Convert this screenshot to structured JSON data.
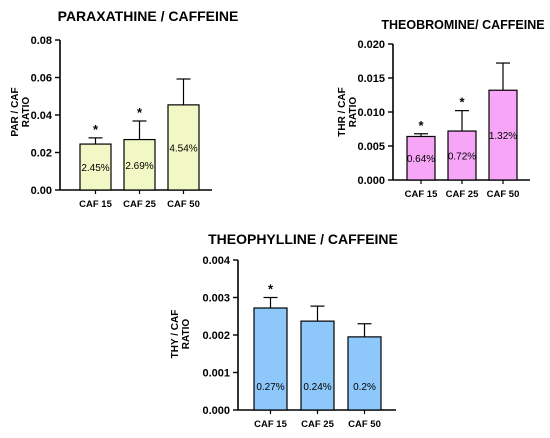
{
  "chart_data": [
    {
      "type": "bar",
      "title": "PARAXATHINE /  CAFFEINE",
      "ylabel": [
        "PAR / CAF",
        "RATIO"
      ],
      "categories": [
        "CAF 15",
        "CAF 25",
        "CAF 50"
      ],
      "values": [
        0.0245,
        0.0269,
        0.0454
      ],
      "error": [
        0.0033,
        0.0099,
        0.0138
      ],
      "bar_labels": [
        "2.45%",
        "2.69%",
        "4.54%"
      ],
      "significance": [
        "*",
        "*",
        ""
      ],
      "ylim": [
        0,
        0.08
      ],
      "yticks": [
        "0.00",
        "0.02",
        "0.04",
        "0.06",
        "0.08"
      ],
      "color": "#f2f7c6"
    },
    {
      "type": "bar",
      "title": "THEOBROMINE/ CAFFEINE",
      "ylabel": [
        "THR / CAF",
        "RATIO"
      ],
      "categories": [
        "CAF 15",
        "CAF 25",
        "CAF 50"
      ],
      "values": [
        0.0064,
        0.0072,
        0.0132
      ],
      "error": [
        0.0004,
        0.003,
        0.004
      ],
      "bar_labels": [
        "0.64%",
        "0.72%",
        "1.32%"
      ],
      "significance": [
        "*",
        "*",
        ""
      ],
      "ylim": [
        0,
        0.02
      ],
      "yticks": [
        "0.000",
        "0.005",
        "0.010",
        "0.015",
        "0.020"
      ],
      "color": "#f7a6f7"
    },
    {
      "type": "bar",
      "title": "THEOPHYLLINE / CAFFEINE",
      "ylabel": [
        "THY / CAF",
        "RATIO"
      ],
      "categories": [
        "CAF 15",
        "CAF 25",
        "CAF 50"
      ],
      "values": [
        0.00272,
        0.00237,
        0.00195
      ],
      "error": [
        0.00028,
        0.0004,
        0.00035
      ],
      "bar_labels": [
        "0.27%",
        "0.24%",
        "0.2%"
      ],
      "significance": [
        "*",
        "",
        ""
      ],
      "ylim": [
        0,
        0.004
      ],
      "yticks": [
        "0.000",
        "0.001",
        "0.002",
        "0.003",
        "0.004"
      ],
      "color": "#8ec8fb"
    }
  ]
}
